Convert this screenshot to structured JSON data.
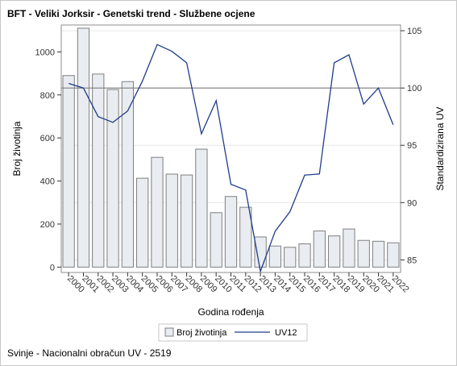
{
  "title": "BFT - Veliki Jorksir - Genetski trend - Službene ocjene",
  "footnote": "Svinje - Nacionalni obračun UV - 2519",
  "chart_data": {
    "type": "bar+line",
    "categories": [
      "2000",
      "2001",
      "2002",
      "2003",
      "2004",
      "2005",
      "2006",
      "2007",
      "2008",
      "2009",
      "2010",
      "2011",
      "2012",
      "2013",
      "2014",
      "2015",
      "2016",
      "2017",
      "2018",
      "2019",
      "2020",
      "2021",
      "2022"
    ],
    "series": [
      {
        "name": "Broj životinja",
        "type": "bar",
        "axis": "left",
        "values": [
          890,
          1110,
          897,
          825,
          862,
          413,
          510,
          432,
          428,
          548,
          253,
          328,
          278,
          140,
          98,
          92,
          108,
          168,
          145,
          177,
          124,
          120,
          113
        ]
      },
      {
        "name": "UV12",
        "type": "line",
        "axis": "right",
        "values": [
          100.4,
          100.0,
          97.5,
          97.0,
          98.0,
          100.6,
          103.8,
          103.2,
          102.2,
          96.0,
          98.9,
          91.6,
          91.1,
          84.0,
          87.5,
          89.2,
          92.4,
          92.5,
          102.2,
          102.9,
          98.6,
          100.0,
          96.8
        ]
      }
    ],
    "xlabel": "Godina rođenja",
    "ylabel_left": "Broj životinja",
    "ylabel_right": "Standardizirana UV",
    "ylim_left": [
      -25,
      1125
    ],
    "ylim_right": [
      83.9,
      105.5
    ],
    "yticks_left": [
      0,
      200,
      400,
      600,
      800,
      1000
    ],
    "yticks_right": [
      85,
      90,
      95,
      100,
      105
    ],
    "reference_line_right": 100,
    "grid": true,
    "legend_position": "bottom",
    "colors": {
      "bar_fill": "#e9ecf0",
      "bar_stroke": "#7f7f7f",
      "line": "#1f3c8c",
      "reference": "#7f7f7f",
      "grid": "#e6e6e6"
    }
  }
}
